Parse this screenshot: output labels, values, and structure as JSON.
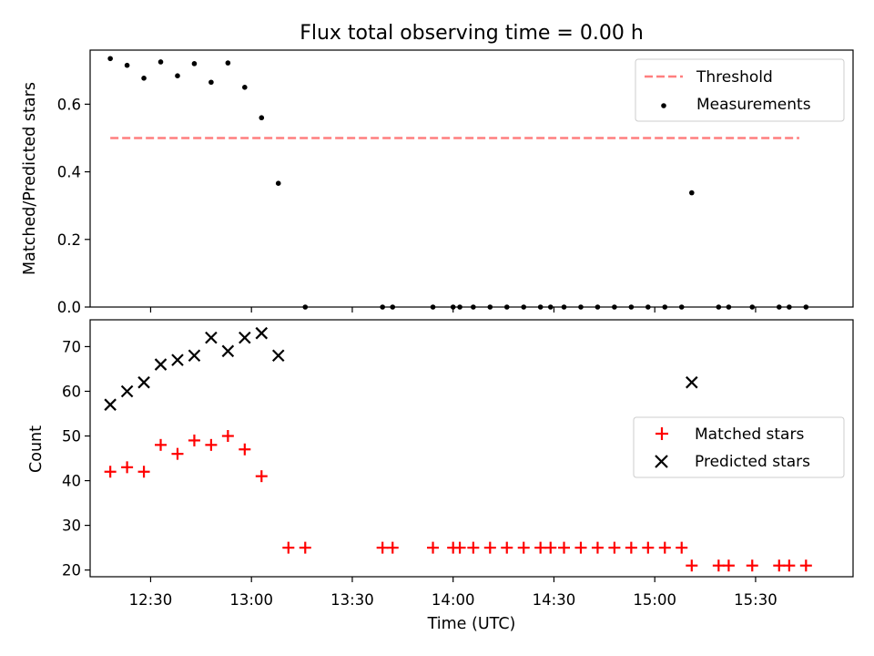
{
  "title": "Flux total observing time = 0.00 h",
  "colors": {
    "threshold": "#ff7f7f",
    "measurements": "#000000",
    "matched": "#ff0000",
    "predicted": "#000000"
  },
  "chart_data": [
    {
      "type": "scatter",
      "ylabel": "Matched/Predicted stars",
      "ylim": [
        0,
        0.76
      ],
      "yticks": [
        "0.0",
        "0.2",
        "0.4",
        "0.6"
      ],
      "xlim": [
        "12:12",
        "15:59"
      ],
      "legend_position": "upper right",
      "legend": [
        {
          "label": "Threshold",
          "marker": "dashed-line"
        },
        {
          "label": "Measurements",
          "marker": "dot"
        }
      ],
      "threshold": {
        "name": "Threshold",
        "value": 0.5,
        "x_start": "12:18",
        "x_end": "15:43"
      },
      "series": [
        {
          "name": "Measurements",
          "x": [
            "12:18",
            "12:23",
            "12:28",
            "12:33",
            "12:38",
            "12:43",
            "12:48",
            "12:53",
            "12:58",
            "13:03",
            "13:08",
            "13:16",
            "13:39",
            "13:42",
            "13:54",
            "14:00",
            "14:02",
            "14:06",
            "14:11",
            "14:16",
            "14:21",
            "14:26",
            "14:29",
            "14:33",
            "14:38",
            "14:43",
            "14:48",
            "14:53",
            "14:58",
            "15:03",
            "15:08",
            "15:11",
            "15:19",
            "15:22",
            "15:29",
            "15:37",
            "15:40",
            "15:45"
          ],
          "y": [
            0.735,
            0.715,
            0.677,
            0.725,
            0.684,
            0.72,
            0.665,
            0.722,
            0.65,
            0.56,
            0.366,
            0,
            0,
            0,
            0,
            0,
            0,
            0,
            0,
            0,
            0,
            0,
            0,
            0,
            0,
            0,
            0,
            0,
            0,
            0,
            0,
            0.338,
            0,
            0,
            0,
            0,
            0,
            0
          ]
        }
      ]
    },
    {
      "type": "scatter",
      "ylabel": "Count",
      "xlabel": "Time (UTC)",
      "ylim": [
        18.5,
        76
      ],
      "yticks": [
        "20",
        "30",
        "40",
        "50",
        "60",
        "70"
      ],
      "xticks": [
        "12:30",
        "13:00",
        "13:30",
        "14:00",
        "14:30",
        "15:00",
        "15:30"
      ],
      "xlim": [
        "12:12",
        "15:59"
      ],
      "legend_position": "center right",
      "legend": [
        {
          "label": "Matched stars",
          "marker": "plus"
        },
        {
          "label": "Predicted stars",
          "marker": "x"
        }
      ],
      "series": [
        {
          "name": "Matched stars",
          "x": [
            "12:18",
            "12:23",
            "12:28",
            "12:33",
            "12:38",
            "12:43",
            "12:48",
            "12:53",
            "12:58",
            "13:03",
            "13:11",
            "13:16",
            "13:39",
            "13:42",
            "13:54",
            "14:00",
            "14:02",
            "14:06",
            "14:11",
            "14:16",
            "14:21",
            "14:26",
            "14:29",
            "14:33",
            "14:38",
            "14:43",
            "14:48",
            "14:53",
            "14:58",
            "15:03",
            "15:08",
            "15:11",
            "15:19",
            "15:22",
            "15:29",
            "15:37",
            "15:40",
            "15:45"
          ],
          "y": [
            42,
            43,
            42,
            48,
            46,
            49,
            48,
            50,
            47,
            41,
            25,
            25,
            25,
            25,
            25,
            25,
            25,
            25,
            25,
            25,
            25,
            25,
            25,
            25,
            25,
            25,
            25,
            25,
            25,
            25,
            25,
            21,
            21,
            21,
            21,
            21,
            21,
            21
          ]
        },
        {
          "name": "Predicted stars",
          "x": [
            "12:18",
            "12:23",
            "12:28",
            "12:33",
            "12:38",
            "12:43",
            "12:48",
            "12:53",
            "12:58",
            "13:03",
            "13:08",
            "15:11"
          ],
          "y": [
            57,
            60,
            62,
            66,
            67,
            68,
            72,
            69,
            72,
            73,
            68,
            62
          ]
        }
      ]
    }
  ]
}
